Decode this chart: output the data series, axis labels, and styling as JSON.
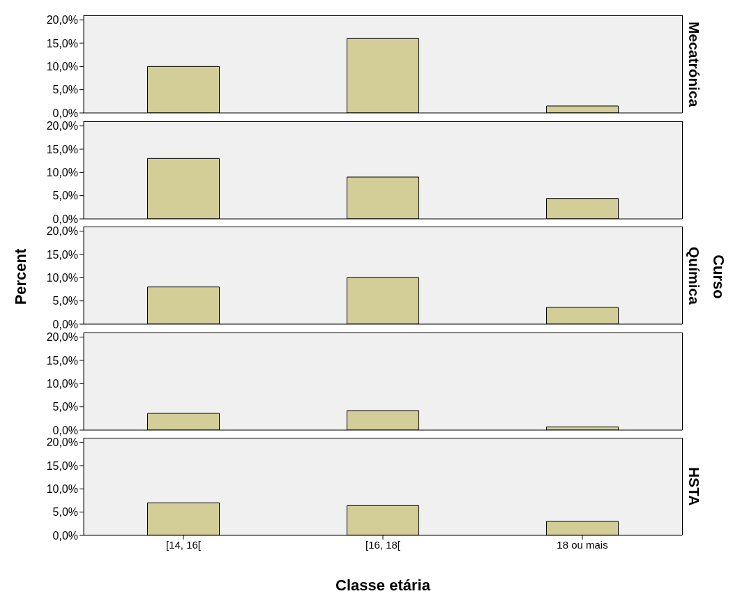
{
  "chart_data": [
    {
      "type": "bar",
      "title": "Mecatrónica",
      "categories": [
        null,
        null,
        null
      ],
      "values": [
        10,
        16,
        1.5
      ],
      "color": "#d3ce98",
      "ylim": [
        0,
        21
      ],
      "yticks": [
        {
          "value": 0,
          "label": "0,0%"
        },
        {
          "value": 5,
          "label": "5,0%"
        },
        {
          "value": 10,
          "label": "10,0%"
        },
        {
          "value": 15,
          "label": "15,0%"
        },
        {
          "value": 20,
          "label": "20,0%"
        }
      ],
      "tick_labels": "y"
    },
    {
      "type": "bar",
      "categories": [
        null,
        null,
        null
      ],
      "values": [
        13,
        9,
        4.4
      ],
      "color": "#d3ce98",
      "ylim": [
        0,
        21
      ],
      "yticks": [
        {
          "value": 0,
          "label": "0,0%"
        },
        {
          "value": 5,
          "label": "5,0%"
        },
        {
          "value": 10,
          "label": "10,0%"
        },
        {
          "value": 15,
          "label": "15,0%"
        },
        {
          "value": 20,
          "label": "20,0%"
        }
      ],
      "tick_labels": "y"
    },
    {
      "type": "bar",
      "title": "Química",
      "ylabel": "Percent",
      "y2label": "Curso",
      "categories": [
        null,
        null,
        null
      ],
      "values": [
        8,
        10,
        3.6
      ],
      "color": "#d3ce98",
      "ylim": [
        0,
        21
      ],
      "yticks": [
        {
          "value": 0,
          "label": "0,0%"
        },
        {
          "value": 5,
          "label": "5,0%"
        },
        {
          "value": 10,
          "label": "10,0%"
        },
        {
          "value": 15,
          "label": "15,0%"
        },
        {
          "value": 20,
          "label": "20,0%"
        }
      ],
      "tick_labels": "y"
    },
    {
      "type": "bar",
      "categories": [
        null,
        null,
        null
      ],
      "values": [
        3.6,
        4.2,
        0.7
      ],
      "color": "#d3ce98",
      "ylim": [
        0,
        21
      ],
      "yticks": [
        {
          "value": 0,
          "label": "0,0%"
        },
        {
          "value": 5,
          "label": "5,0%"
        },
        {
          "value": 10,
          "label": "10,0%"
        },
        {
          "value": 15,
          "label": "15,0%"
        },
        {
          "value": 20,
          "label": "20,0%"
        }
      ],
      "tick_labels": "y"
    },
    {
      "type": "bar",
      "title": "HSTA",
      "xlabel": "Classe etária",
      "categories": [
        "[14, 16[",
        "[16, 18[",
        "18 ou mais"
      ],
      "values": [
        7,
        6.4,
        3
      ],
      "color": "#d3ce98",
      "ylim": [
        0,
        21
      ],
      "yticks": [
        {
          "value": 0,
          "label": "0,0%"
        },
        {
          "value": 5,
          "label": "5,0%"
        },
        {
          "value": 10,
          "label": "10,0%"
        },
        {
          "value": 15,
          "label": "15,0%"
        },
        {
          "value": 20,
          "label": "20,0%"
        }
      ]
    }
  ]
}
